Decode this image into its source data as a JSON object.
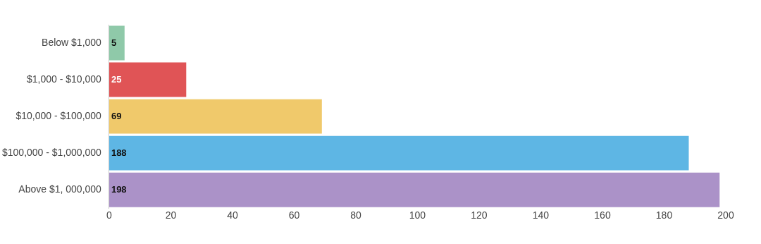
{
  "chart_data": {
    "type": "bar",
    "orientation": "horizontal",
    "categories": [
      "Below $1,000",
      "$1,000 - $10,000",
      "$10,000 - $100,000",
      "$100,000 - $1,000,000",
      "Above $1, 000,000"
    ],
    "values": [
      5,
      25,
      69,
      188,
      198
    ],
    "colors": [
      "#8fc9a9",
      "#e05456",
      "#f0c96b",
      "#5eb6e4",
      "#ab92c8"
    ],
    "xlim": [
      0,
      200
    ],
    "xticks": [
      0,
      20,
      40,
      60,
      80,
      100,
      120,
      140,
      160,
      180,
      200
    ],
    "data_labels": true,
    "grid": false,
    "legend": false
  }
}
